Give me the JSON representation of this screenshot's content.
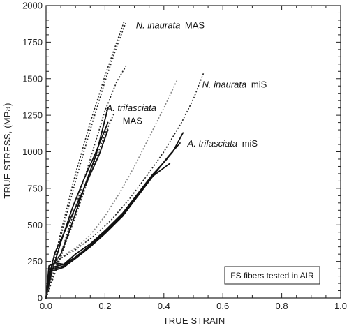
{
  "chart_data": {
    "type": "line",
    "xlabel": "TRUE STRAIN",
    "ylabel": "TRUE STRESS, (MPa)",
    "xlim": [
      0,
      1.0
    ],
    "ylim": [
      0,
      2000
    ],
    "x_ticks": [
      "0.0",
      "0.2",
      "0.4",
      "0.6",
      "0.8",
      "1.0"
    ],
    "y_ticks": [
      "0",
      "250",
      "500",
      "750",
      "1000",
      "1250",
      "1500",
      "1750",
      "2000"
    ],
    "grid": false,
    "annotations": [
      {
        "italic": "N. inaurata",
        "normal": "MAS",
        "x": 0.305,
        "y": 1845
      },
      {
        "italic": "N. inaurata",
        "normal": "miS",
        "x": 0.53,
        "y": 1440
      },
      {
        "italic": "A. trifasciata",
        "normal": "",
        "x": 0.205,
        "y": 1280
      },
      {
        "italic": "",
        "normal": "MAS",
        "x": 0.26,
        "y": 1190
      },
      {
        "italic": "A. trifasciata",
        "normal": "miS",
        "x": 0.48,
        "y": 1035
      }
    ],
    "legend_box": "FS fibers tested in AIR",
    "series": [
      {
        "style": "solid",
        "color": "#111111",
        "points": [
          [
            0,
            0
          ],
          [
            0.02,
            220
          ],
          [
            0.05,
            300
          ],
          [
            0.09,
            520
          ],
          [
            0.13,
            760
          ],
          [
            0.17,
            980
          ],
          [
            0.21,
            1300
          ]
        ]
      },
      {
        "style": "solid",
        "color": "#111111",
        "points": [
          [
            0,
            0
          ],
          [
            0.02,
            180
          ],
          [
            0.05,
            380
          ],
          [
            0.09,
            620
          ],
          [
            0.13,
            820
          ],
          [
            0.17,
            1000
          ],
          [
            0.21,
            1200
          ]
        ]
      },
      {
        "style": "solid",
        "color": "#111111",
        "points": [
          [
            0,
            0
          ],
          [
            0.01,
            150
          ],
          [
            0.03,
            310
          ],
          [
            0.06,
            440
          ],
          [
            0.1,
            620
          ],
          [
            0.14,
            800
          ],
          [
            0.18,
            980
          ],
          [
            0.21,
            1150
          ]
        ]
      },
      {
        "style": "solid",
        "color": "#111111",
        "points": [
          [
            0,
            0
          ],
          [
            0.01,
            220
          ],
          [
            0.03,
            240
          ],
          [
            0.06,
            230
          ],
          [
            0.1,
            280
          ],
          [
            0.15,
            360
          ],
          [
            0.2,
            450
          ],
          [
            0.26,
            560
          ],
          [
            0.32,
            720
          ],
          [
            0.38,
            880
          ],
          [
            0.43,
            1000
          ],
          [
            0.465,
            1130
          ]
        ]
      },
      {
        "style": "solid",
        "color": "#111111",
        "points": [
          [
            0,
            0
          ],
          [
            0.01,
            200
          ],
          [
            0.03,
            200
          ],
          [
            0.06,
            220
          ],
          [
            0.1,
            280
          ],
          [
            0.15,
            350
          ],
          [
            0.2,
            450
          ],
          [
            0.26,
            570
          ],
          [
            0.32,
            720
          ],
          [
            0.38,
            880
          ],
          [
            0.42,
            980
          ],
          [
            0.455,
            1060
          ]
        ]
      },
      {
        "style": "solid",
        "color": "#111111",
        "points": [
          [
            0,
            0
          ],
          [
            0.01,
            180
          ],
          [
            0.03,
            190
          ],
          [
            0.06,
            210
          ],
          [
            0.1,
            270
          ],
          [
            0.15,
            350
          ],
          [
            0.2,
            440
          ],
          [
            0.26,
            560
          ],
          [
            0.31,
            700
          ],
          [
            0.36,
            830
          ],
          [
            0.42,
            920
          ]
        ]
      },
      {
        "style": "solid",
        "color": "#111111",
        "points": [
          [
            0,
            0
          ],
          [
            0.01,
            160
          ],
          [
            0.03,
            215
          ],
          [
            0.06,
            230
          ],
          [
            0.1,
            300
          ],
          [
            0.15,
            370
          ],
          [
            0.2,
            460
          ],
          [
            0.26,
            580
          ],
          [
            0.31,
            710
          ],
          [
            0.36,
            840
          ],
          [
            0.41,
            950
          ]
        ]
      },
      {
        "style": "dotted",
        "color": "#222222",
        "points": [
          [
            0,
            0
          ],
          [
            0.05,
            450
          ],
          [
            0.1,
            850
          ],
          [
            0.15,
            1200
          ],
          [
            0.2,
            1520
          ],
          [
            0.24,
            1750
          ],
          [
            0.265,
            1890
          ]
        ]
      },
      {
        "style": "dotted",
        "color": "#222222",
        "points": [
          [
            0,
            0
          ],
          [
            0.05,
            420
          ],
          [
            0.1,
            800
          ],
          [
            0.15,
            1150
          ],
          [
            0.2,
            1480
          ],
          [
            0.24,
            1720
          ],
          [
            0.27,
            1880
          ]
        ]
      },
      {
        "style": "dotted",
        "color": "#222222",
        "points": [
          [
            0,
            0
          ],
          [
            0.05,
            300
          ],
          [
            0.1,
            620
          ],
          [
            0.15,
            950
          ],
          [
            0.2,
            1280
          ],
          [
            0.24,
            1480
          ],
          [
            0.275,
            1600
          ]
        ]
      },
      {
        "style": "dotted",
        "color": "#222222",
        "points": [
          [
            0,
            0
          ],
          [
            0.05,
            280
          ],
          [
            0.1,
            560
          ],
          [
            0.15,
            850
          ],
          [
            0.2,
            1120
          ],
          [
            0.23,
            1260
          ]
        ]
      },
      {
        "style": "dotted",
        "color": "#888888",
        "points": [
          [
            0,
            0
          ],
          [
            0.04,
            270
          ],
          [
            0.1,
            340
          ],
          [
            0.15,
            430
          ],
          [
            0.2,
            560
          ],
          [
            0.25,
            720
          ],
          [
            0.3,
            900
          ],
          [
            0.35,
            1100
          ],
          [
            0.4,
            1300
          ],
          [
            0.445,
            1490
          ]
        ]
      },
      {
        "style": "dotted",
        "color": "#222222",
        "points": [
          [
            0,
            0
          ],
          [
            0.04,
            260
          ],
          [
            0.1,
            330
          ],
          [
            0.16,
            420
          ],
          [
            0.22,
            530
          ],
          [
            0.28,
            670
          ],
          [
            0.34,
            830
          ],
          [
            0.4,
            1000
          ],
          [
            0.46,
            1200
          ],
          [
            0.5,
            1360
          ],
          [
            0.535,
            1540
          ]
        ]
      }
    ]
  }
}
